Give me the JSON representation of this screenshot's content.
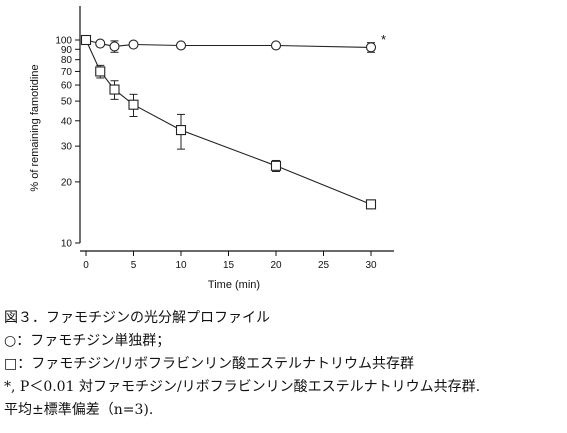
{
  "chart_data": {
    "type": "scatter",
    "xlabel": "Time (min)",
    "ylabel": "% of remaining famotidine",
    "xlim": [
      0,
      32
    ],
    "ylim": [
      10,
      100
    ],
    "yscale": "log",
    "x_ticks": [
      0,
      5,
      10,
      15,
      20,
      25,
      30
    ],
    "y_ticks": [
      10,
      20,
      30,
      40,
      50,
      60,
      70,
      80,
      90,
      100
    ],
    "series": [
      {
        "marker": "circle",
        "x": [
          0,
          1.5,
          3,
          5,
          10,
          20,
          30
        ],
        "y": [
          100,
          96,
          93,
          95,
          94,
          94,
          92
        ],
        "err": [
          0,
          1.5,
          6,
          2,
          1.5,
          1.5,
          5
        ]
      },
      {
        "marker": "square",
        "x": [
          0,
          1.5,
          3,
          5,
          10,
          20,
          30
        ],
        "y": [
          100,
          70,
          57,
          48,
          36,
          24,
          15.5
        ],
        "err": [
          0,
          5,
          6,
          6,
          7,
          1.5,
          0.5
        ]
      }
    ],
    "annotation": "*",
    "grid": false
  },
  "caption": {
    "title": "図３．ファモチジンの光分解プロファイル",
    "line1": "○：ファモチジン単独群；",
    "line2": "□：ファモチジン/リボフラビンリン酸エステルナトリウム共存群",
    "line3": "*, P＜0.01  対ファモチジン/リボフラビンリン酸エステルナトリウム共存群.",
    "line4": "平均±標準偏差（n=3)."
  }
}
